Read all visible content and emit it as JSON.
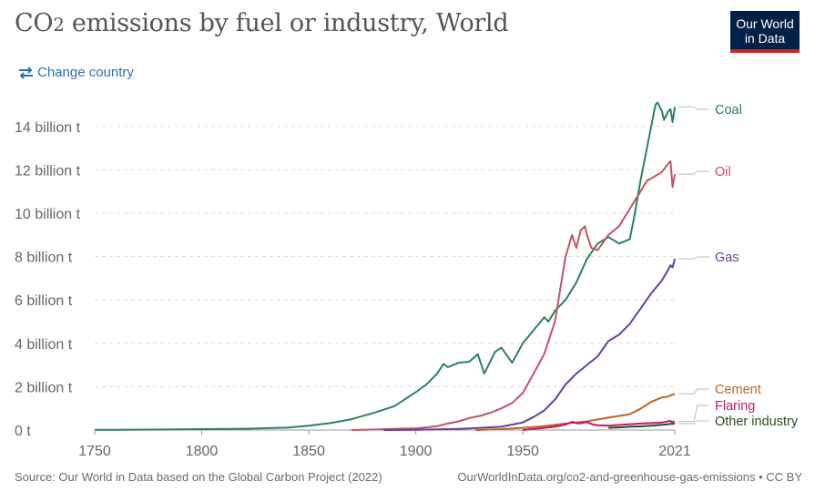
{
  "header": {
    "title": "CO2 emissions by fuel or industry, World",
    "logo_line1": "Our World",
    "logo_line2": "in Data",
    "change_country": "Change country"
  },
  "footer": {
    "source": "Source: Our World in Data based on the Global Carbon Project (2022)",
    "link": "OurWorldInData.org/co2-and-greenhouse-gas-emissions • CC BY"
  },
  "colors": {
    "coal": "#2a8260",
    "oil": "#c05466",
    "gas": "#6b3d9a",
    "cement": "#c0661d",
    "flaring": "#c8176b",
    "other": "#2b4d1b",
    "link": "#2d6fb5",
    "brand": "#002147",
    "brand_accent": "#ce261e"
  },
  "chart_data": {
    "type": "line",
    "title": "CO2 emissions by fuel or industry, World",
    "xlabel": "",
    "ylabel": "",
    "xlim": [
      1750,
      2021
    ],
    "ylim": [
      0,
      15
    ],
    "y_ticks": [
      0,
      2,
      4,
      6,
      8,
      10,
      12,
      14
    ],
    "y_tick_labels": [
      "0 t",
      "2 billion t",
      "4 billion t",
      "6 billion t",
      "8 billion t",
      "10 billion t",
      "12 billion t",
      "14 billion t"
    ],
    "x_ticks": [
      1750,
      1800,
      1850,
      1900,
      1950,
      2021
    ],
    "x_tick_labels": [
      "1750",
      "1800",
      "1850",
      "1900",
      "1950",
      "2021"
    ],
    "grid": "horizontal dashed",
    "legend": "line-end labels (right)",
    "series": [
      {
        "name": "Coal",
        "key": "coal",
        "x": [
          1750,
          1780,
          1800,
          1820,
          1840,
          1850,
          1860,
          1870,
          1880,
          1890,
          1900,
          1905,
          1910,
          1913,
          1915,
          1920,
          1925,
          1929,
          1932,
          1937,
          1940,
          1945,
          1950,
          1955,
          1960,
          1962,
          1965,
          1970,
          1975,
          1980,
          1985,
          1990,
          1995,
          2000,
          2002,
          2005,
          2008,
          2010,
          2012,
          2013,
          2015,
          2016,
          2018,
          2019,
          2020,
          2021
        ],
        "y": [
          0.01,
          0.02,
          0.04,
          0.06,
          0.11,
          0.2,
          0.32,
          0.5,
          0.78,
          1.1,
          1.75,
          2.1,
          2.6,
          3.05,
          2.9,
          3.1,
          3.15,
          3.5,
          2.6,
          3.6,
          3.8,
          3.1,
          4.0,
          4.6,
          5.2,
          5.0,
          5.5,
          6.0,
          6.8,
          7.9,
          8.6,
          8.9,
          8.6,
          8.8,
          9.8,
          11.5,
          13.0,
          14.0,
          15.0,
          15.1,
          14.7,
          14.3,
          14.7,
          14.8,
          14.2,
          14.9
        ]
      },
      {
        "name": "Oil",
        "key": "oil",
        "x": [
          1870,
          1880,
          1890,
          1900,
          1905,
          1910,
          1915,
          1920,
          1925,
          1930,
          1935,
          1940,
          1945,
          1950,
          1955,
          1960,
          1965,
          1970,
          1973,
          1975,
          1977,
          1979,
          1980,
          1982,
          1985,
          1990,
          1995,
          2000,
          2005,
          2008,
          2010,
          2015,
          2018,
          2019,
          2020,
          2021
        ],
        "y": [
          0.0,
          0.02,
          0.05,
          0.08,
          0.12,
          0.18,
          0.3,
          0.4,
          0.55,
          0.65,
          0.8,
          1.0,
          1.25,
          1.7,
          2.6,
          3.5,
          5.0,
          8.0,
          9.0,
          8.4,
          9.2,
          9.4,
          9.0,
          8.4,
          8.3,
          9.0,
          9.4,
          10.2,
          11.0,
          11.5,
          11.6,
          11.9,
          12.3,
          12.4,
          11.2,
          11.8
        ]
      },
      {
        "name": "Gas",
        "key": "gas",
        "x": [
          1885,
          1900,
          1910,
          1920,
          1930,
          1940,
          1950,
          1955,
          1960,
          1965,
          1970,
          1975,
          1980,
          1985,
          1990,
          1995,
          2000,
          2005,
          2010,
          2015,
          2018,
          2019,
          2020,
          2021
        ],
        "y": [
          0.0,
          0.01,
          0.03,
          0.05,
          0.1,
          0.15,
          0.35,
          0.6,
          0.9,
          1.4,
          2.1,
          2.6,
          3.0,
          3.4,
          4.1,
          4.4,
          4.9,
          5.6,
          6.3,
          6.9,
          7.4,
          7.6,
          7.5,
          7.9
        ]
      },
      {
        "name": "Cement",
        "key": "cement",
        "x": [
          1928,
          1940,
          1950,
          1960,
          1970,
          1980,
          1990,
          2000,
          2005,
          2010,
          2015,
          2018,
          2019,
          2020,
          2021
        ],
        "y": [
          0.0,
          0.04,
          0.1,
          0.18,
          0.3,
          0.4,
          0.57,
          0.73,
          0.98,
          1.3,
          1.5,
          1.55,
          1.6,
          1.62,
          1.67
        ]
      },
      {
        "name": "Flaring",
        "key": "flaring",
        "x": [
          1950,
          1960,
          1965,
          1970,
          1973,
          1976,
          1980,
          1983,
          1985,
          1990,
          2000,
          2005,
          2010,
          2015,
          2019,
          2020,
          2021
        ],
        "y": [
          0.0,
          0.1,
          0.15,
          0.25,
          0.38,
          0.3,
          0.36,
          0.25,
          0.22,
          0.2,
          0.27,
          0.3,
          0.32,
          0.35,
          0.42,
          0.36,
          0.4
        ]
      },
      {
        "name": "Other industry",
        "key": "other",
        "x": [
          1990,
          1995,
          2000,
          2005,
          2010,
          2015,
          2018,
          2019,
          2020,
          2021
        ],
        "y": [
          0.1,
          0.12,
          0.15,
          0.17,
          0.2,
          0.24,
          0.27,
          0.28,
          0.28,
          0.3
        ]
      }
    ]
  }
}
